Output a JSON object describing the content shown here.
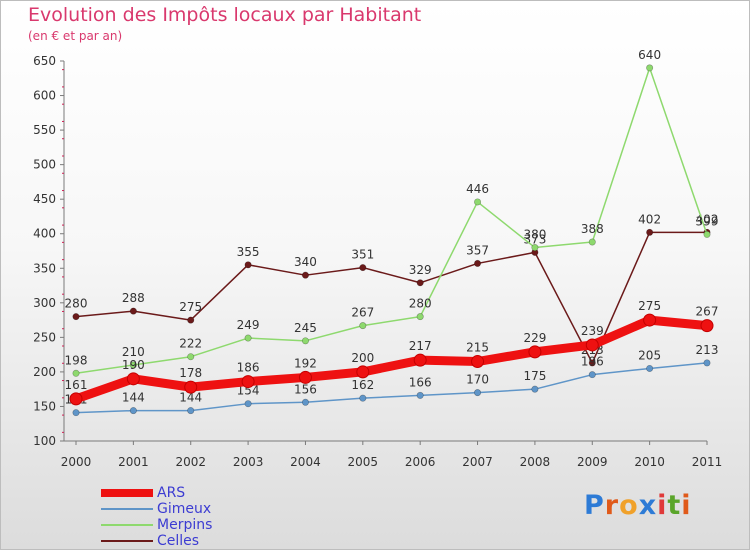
{
  "header": {
    "title": "Evolution des Impôts locaux par Habitant",
    "subtitle": "(en € et par an)"
  },
  "colors": {
    "title": "#d9386d",
    "axis": "#7a7a7a",
    "tick_minor": "#cc2255",
    "legend_text": "#3c3cd2"
  },
  "logo": {
    "letters": [
      "P",
      "r",
      "o",
      "x",
      "i",
      "t",
      "i"
    ],
    "colors": [
      "#2d7bd6",
      "#e05a1a",
      "#f0a12a",
      "#2d7bd6",
      "#e03a3a",
      "#5aa52a",
      "#e05a1a"
    ]
  },
  "chart_data": {
    "type": "line",
    "title": "Evolution des Impôts locaux par Habitant",
    "subtitle": "(en € et par an)",
    "xlabel": "",
    "ylabel": "",
    "x": [
      "2000",
      "2001",
      "2002",
      "2003",
      "2004",
      "2005",
      "2006",
      "2007",
      "2008",
      "2009",
      "2010",
      "2011"
    ],
    "ylim": [
      100,
      650
    ],
    "yticks": [
      100,
      150,
      200,
      250,
      300,
      350,
      400,
      450,
      500,
      550,
      600,
      650
    ],
    "grid": false,
    "legend_position": "bottom-left",
    "series": [
      {
        "name": "Celles",
        "color": "#6b1a1a",
        "values": [
          280,
          288,
          275,
          355,
          340,
          351,
          329,
          357,
          373,
          213,
          402,
          402
        ],
        "labels": [
          "280",
          "288",
          "275",
          "355",
          "340",
          "351",
          "329",
          "357",
          "373",
          "213",
          "402",
          "402"
        ]
      },
      {
        "name": "Merpins",
        "color": "#8ed96e",
        "values": [
          198,
          210,
          222,
          249,
          245,
          267,
          280,
          446,
          380,
          388,
          640,
          399
        ],
        "labels": [
          "198",
          "210",
          "222",
          "249",
          "245",
          "267",
          "280",
          "446",
          "380",
          "388",
          "640",
          "399"
        ]
      },
      {
        "name": "Gimeux",
        "color": "#5f95c8",
        "values": [
          141,
          144,
          144,
          154,
          156,
          162,
          166,
          170,
          175,
          196,
          205,
          213
        ],
        "labels": [
          "141",
          "144",
          "144",
          "154",
          "156",
          "162",
          "166",
          "170",
          "175",
          "196",
          "205",
          "213"
        ]
      },
      {
        "name": "ARS",
        "color": "#ee1111",
        "values": [
          161,
          190,
          178,
          186,
          192,
          200,
          217,
          215,
          229,
          239,
          275,
          267
        ],
        "labels": [
          "161",
          "190",
          "178",
          "186",
          "192",
          "200",
          "217",
          "215",
          "229",
          "239",
          "275",
          "267"
        ]
      }
    ],
    "legend": [
      "ARS",
      "Gimeux",
      "Merpins",
      "Celles"
    ]
  }
}
